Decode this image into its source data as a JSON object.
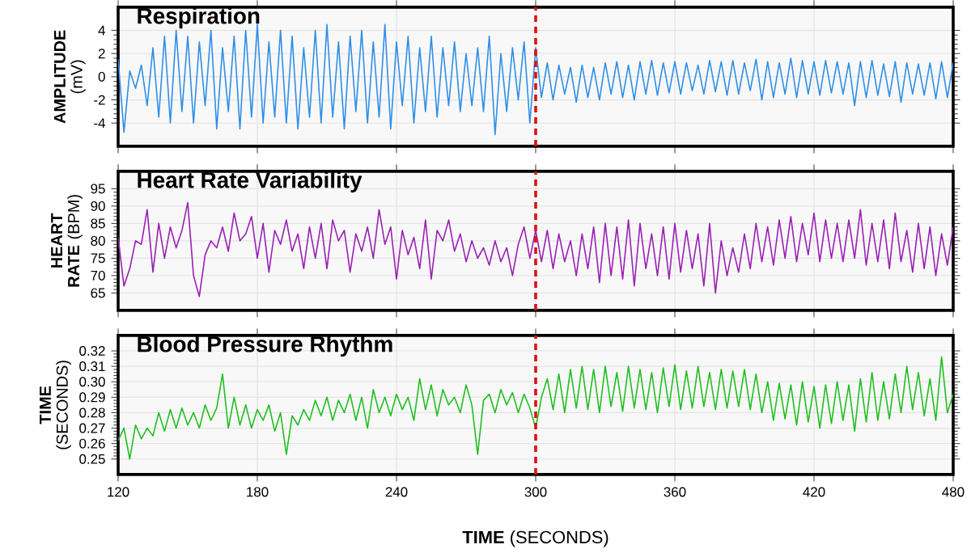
{
  "chart_data": [
    {
      "type": "line",
      "title": "Respiration",
      "ylabel": "**AMPLITUDE** (mV)",
      "color": "#2e8fe8",
      "x": [
        120,
        122.5,
        125,
        127.5,
        130,
        132.5,
        135,
        137.5,
        140,
        142.5,
        145,
        147.5,
        150,
        152.5,
        155,
        157.5,
        160,
        162.5,
        165,
        167.5,
        170,
        172.5,
        175,
        177.5,
        180,
        182.5,
        185,
        187.5,
        190,
        192.5,
        195,
        197.5,
        200,
        202.5,
        205,
        207.5,
        210,
        212.5,
        215,
        217.5,
        220,
        222.5,
        225,
        227.5,
        230,
        232.5,
        235,
        237.5,
        240,
        242.5,
        245,
        247.5,
        250,
        252.5,
        255,
        257.5,
        260,
        262.5,
        265,
        267.5,
        270,
        272.5,
        275,
        277.5,
        280,
        282.5,
        285,
        287.5,
        290,
        292.5,
        295,
        297.5,
        300,
        302.5,
        305,
        307.5,
        310,
        312.5,
        315,
        317.5,
        320,
        322.5,
        325,
        327.5,
        330,
        332.5,
        335,
        337.5,
        340,
        342.5,
        345,
        347.5,
        350,
        352.5,
        355,
        357.5,
        360,
        362.5,
        365,
        367.5,
        370,
        372.5,
        375,
        377.5,
        380,
        382.5,
        385,
        387.5,
        390,
        392.5,
        395,
        397.5,
        400,
        402.5,
        405,
        407.5,
        410,
        412.5,
        415,
        417.5,
        420,
        422.5,
        425,
        427.5,
        430,
        432.5,
        435,
        437.5,
        440,
        442.5,
        445,
        447.5,
        450,
        452.5,
        455,
        457.5,
        460,
        462.5,
        465,
        467.5,
        470,
        472.5,
        475,
        477.5,
        480
      ],
      "values": [
        1.5,
        -4.8,
        0.5,
        -1,
        1,
        -2.5,
        2.5,
        -3.5,
        3.5,
        -4,
        4,
        -3,
        3.5,
        -4,
        3,
        -2.5,
        4,
        -4.5,
        2.5,
        -3,
        3.5,
        -4.5,
        4,
        -3.5,
        4.5,
        -4,
        3,
        -3.5,
        4,
        -4,
        3.5,
        -4.5,
        2.5,
        -3.5,
        4,
        -4,
        4.5,
        -3.5,
        3,
        -4.5,
        3.5,
        -3,
        4,
        -4,
        3,
        -3.5,
        4.5,
        -4.5,
        3,
        -2.5,
        3.5,
        -4,
        2.5,
        -3,
        3.5,
        -3.5,
        2.5,
        -2.5,
        3,
        -3,
        2,
        -2.5,
        2.5,
        -3,
        3.5,
        -5,
        2,
        -3,
        2.5,
        -2,
        3,
        -4,
        2.5,
        -1.8,
        1.2,
        -2,
        1,
        -1.5,
        0.8,
        -2.2,
        1,
        -1.8,
        0.8,
        -2,
        1.2,
        -1.5,
        1.3,
        -1.8,
        1,
        -2,
        1.3,
        -1.5,
        1.4,
        -1.6,
        1.2,
        -1.4,
        1.3,
        -1.5,
        1.2,
        -1.2,
        1,
        -1.5,
        1.4,
        -1.3,
        1.3,
        -1.6,
        1.4,
        -1.5,
        1.2,
        -1.2,
        1.5,
        -2,
        1.3,
        -1.8,
        1.2,
        -1.5,
        1.6,
        -1.8,
        1.4,
        -1.5,
        1.3,
        -1.6,
        1.4,
        -1.4,
        1.3,
        -1.5,
        1.2,
        -2.5,
        1.3,
        -1.8,
        1.4,
        -1.6,
        1.1,
        -1.7,
        1.3,
        -2.2,
        1.2,
        -1.5,
        1.1,
        -1.6,
        1.2,
        -1.9,
        1.3,
        -1.8,
        1.2
      ],
      "xlim": [
        120,
        480
      ],
      "ylim": [
        -6,
        6
      ],
      "xticks": [
        120,
        180,
        240,
        300,
        360,
        420,
        480
      ],
      "yticks": [
        -4,
        -2,
        0,
        2,
        4
      ],
      "grid": true,
      "tick_labels": "y",
      "ref_lines": [
        {
          "axis": "x",
          "value": 300,
          "color": "#dd1111",
          "line_style": "dashed"
        }
      ]
    },
    {
      "type": "line",
      "title": "Heart Rate Variability",
      "ylabel": "**HEART RATE** (BPM)",
      "color": "#9b1fb5",
      "x": [
        120,
        122.5,
        125,
        127.5,
        130,
        132.5,
        135,
        137.5,
        140,
        142.5,
        145,
        147.5,
        150,
        152.5,
        155,
        157.5,
        160,
        162.5,
        165,
        167.5,
        170,
        172.5,
        175,
        177.5,
        180,
        182.5,
        185,
        187.5,
        190,
        192.5,
        195,
        197.5,
        200,
        202.5,
        205,
        207.5,
        210,
        212.5,
        215,
        217.5,
        220,
        222.5,
        225,
        227.5,
        230,
        232.5,
        235,
        237.5,
        240,
        242.5,
        245,
        247.5,
        250,
        252.5,
        255,
        257.5,
        260,
        262.5,
        265,
        267.5,
        270,
        272.5,
        275,
        277.5,
        280,
        282.5,
        285,
        287.5,
        290,
        292.5,
        295,
        297.5,
        300,
        302.5,
        305,
        307.5,
        310,
        312.5,
        315,
        317.5,
        320,
        322.5,
        325,
        327.5,
        330,
        332.5,
        335,
        337.5,
        340,
        342.5,
        345,
        347.5,
        350,
        352.5,
        355,
        357.5,
        360,
        362.5,
        365,
        367.5,
        370,
        372.5,
        375,
        377.5,
        380,
        382.5,
        385,
        387.5,
        390,
        392.5,
        395,
        397.5,
        400,
        402.5,
        405,
        407.5,
        410,
        412.5,
        415,
        417.5,
        420,
        422.5,
        425,
        427.5,
        430,
        432.5,
        435,
        437.5,
        440,
        442.5,
        445,
        447.5,
        450,
        452.5,
        455,
        457.5,
        460,
        462.5,
        465,
        467.5,
        470,
        472.5,
        475,
        477.5,
        480
      ],
      "values": [
        81,
        67,
        72,
        80,
        79,
        89,
        71,
        85,
        75,
        84,
        78,
        83,
        91,
        70,
        64,
        76,
        80,
        78,
        84,
        77,
        88,
        80,
        82,
        87,
        75,
        85,
        71,
        83,
        79,
        86,
        77,
        82,
        72,
        84,
        75,
        85,
        72,
        86,
        80,
        83,
        71,
        82,
        77,
        84,
        75,
        89,
        79,
        84,
        69,
        83,
        76,
        81,
        72,
        86,
        69,
        83,
        80,
        86,
        77,
        82,
        74,
        80,
        75,
        78,
        73,
        80,
        74,
        78,
        70,
        79,
        84,
        75,
        83,
        74,
        83,
        72,
        82,
        74,
        80,
        70,
        82,
        72,
        84,
        68,
        85,
        70,
        84,
        69,
        86,
        67,
        85,
        72,
        82,
        70,
        84,
        69,
        85,
        71,
        83,
        72,
        82,
        67,
        85,
        65,
        80,
        70,
        78,
        71,
        82,
        72,
        85,
        74,
        84,
        73,
        86,
        75,
        87,
        74,
        85,
        76,
        88,
        74,
        86,
        75,
        85,
        74,
        86,
        75,
        89,
        73,
        85,
        74,
        86,
        72,
        88,
        74,
        83,
        71,
        85,
        72,
        84,
        70,
        82,
        73,
        84
      ],
      "xlim": [
        120,
        480
      ],
      "ylim": [
        60,
        100
      ],
      "xticks": [
        120,
        180,
        240,
        300,
        360,
        420,
        480
      ],
      "yticks": [
        65,
        70,
        75,
        80,
        85,
        90,
        95
      ],
      "grid": true,
      "tick_labels": "y",
      "ref_lines": [
        {
          "axis": "x",
          "value": 300,
          "color": "#dd1111",
          "line_style": "dashed"
        }
      ]
    },
    {
      "type": "line",
      "title": "Blood Pressure Rhythm",
      "ylabel": "**TIME** (SECONDS)",
      "xlabel": "**TIME** (SECONDS)",
      "color": "#1fbf1f",
      "x": [
        120,
        122.5,
        125,
        127.5,
        130,
        132.5,
        135,
        137.5,
        140,
        142.5,
        145,
        147.5,
        150,
        152.5,
        155,
        157.5,
        160,
        162.5,
        165,
        167.5,
        170,
        172.5,
        175,
        177.5,
        180,
        182.5,
        185,
        187.5,
        190,
        192.5,
        195,
        197.5,
        200,
        202.5,
        205,
        207.5,
        210,
        212.5,
        215,
        217.5,
        220,
        222.5,
        225,
        227.5,
        230,
        232.5,
        235,
        237.5,
        240,
        242.5,
        245,
        247.5,
        250,
        252.5,
        255,
        257.5,
        260,
        262.5,
        265,
        267.5,
        270,
        272.5,
        275,
        277.5,
        280,
        282.5,
        285,
        287.5,
        290,
        292.5,
        295,
        297.5,
        300,
        302.5,
        305,
        307.5,
        310,
        312.5,
        315,
        317.5,
        320,
        322.5,
        325,
        327.5,
        330,
        332.5,
        335,
        337.5,
        340,
        342.5,
        345,
        347.5,
        350,
        352.5,
        355,
        357.5,
        360,
        362.5,
        365,
        367.5,
        370,
        372.5,
        375,
        377.5,
        380,
        382.5,
        385,
        387.5,
        390,
        392.5,
        395,
        397.5,
        400,
        402.5,
        405,
        407.5,
        410,
        412.5,
        415,
        417.5,
        420,
        422.5,
        425,
        427.5,
        430,
        432.5,
        435,
        437.5,
        440,
        442.5,
        445,
        447.5,
        450,
        452.5,
        455,
        457.5,
        460,
        462.5,
        465,
        467.5,
        470,
        472.5,
        475,
        477.5,
        480
      ],
      "values": [
        0.262,
        0.27,
        0.25,
        0.272,
        0.263,
        0.27,
        0.265,
        0.28,
        0.268,
        0.282,
        0.27,
        0.283,
        0.272,
        0.28,
        0.27,
        0.285,
        0.275,
        0.283,
        0.305,
        0.27,
        0.29,
        0.272,
        0.285,
        0.27,
        0.282,
        0.275,
        0.285,
        0.268,
        0.28,
        0.253,
        0.278,
        0.272,
        0.282,
        0.275,
        0.288,
        0.278,
        0.29,
        0.275,
        0.288,
        0.28,
        0.292,
        0.275,
        0.29,
        0.27,
        0.295,
        0.28,
        0.29,
        0.278,
        0.292,
        0.282,
        0.29,
        0.275,
        0.302,
        0.282,
        0.298,
        0.278,
        0.295,
        0.285,
        0.29,
        0.28,
        0.298,
        0.285,
        0.253,
        0.288,
        0.292,
        0.28,
        0.295,
        0.285,
        0.293,
        0.28,
        0.292,
        0.283,
        0.27,
        0.29,
        0.302,
        0.282,
        0.305,
        0.28,
        0.308,
        0.283,
        0.31,
        0.282,
        0.308,
        0.28,
        0.31,
        0.284,
        0.306,
        0.281,
        0.31,
        0.283,
        0.308,
        0.282,
        0.306,
        0.28,
        0.309,
        0.284,
        0.311,
        0.282,
        0.307,
        0.283,
        0.31,
        0.284,
        0.306,
        0.282,
        0.308,
        0.283,
        0.307,
        0.284,
        0.308,
        0.282,
        0.305,
        0.28,
        0.3,
        0.275,
        0.299,
        0.276,
        0.298,
        0.272,
        0.3,
        0.274,
        0.297,
        0.27,
        0.298,
        0.273,
        0.3,
        0.275,
        0.298,
        0.268,
        0.302,
        0.274,
        0.306,
        0.275,
        0.3,
        0.276,
        0.305,
        0.28,
        0.31,
        0.282,
        0.306,
        0.278,
        0.302,
        0.275,
        0.316,
        0.28,
        0.292
      ],
      "xlim": [
        120,
        480
      ],
      "ylim": [
        0.24,
        0.33
      ],
      "xticks": [
        120,
        180,
        240,
        300,
        360,
        420,
        480
      ],
      "yticks": [
        0.25,
        0.26,
        0.27,
        0.28,
        0.29,
        {
          "value": 0.3,
          "label": "0.30"
        },
        0.31,
        0.32
      ],
      "grid": true,
      "ref_lines": [
        {
          "axis": "x",
          "value": 300,
          "color": "#dd1111",
          "line_style": "dashed"
        }
      ]
    }
  ]
}
